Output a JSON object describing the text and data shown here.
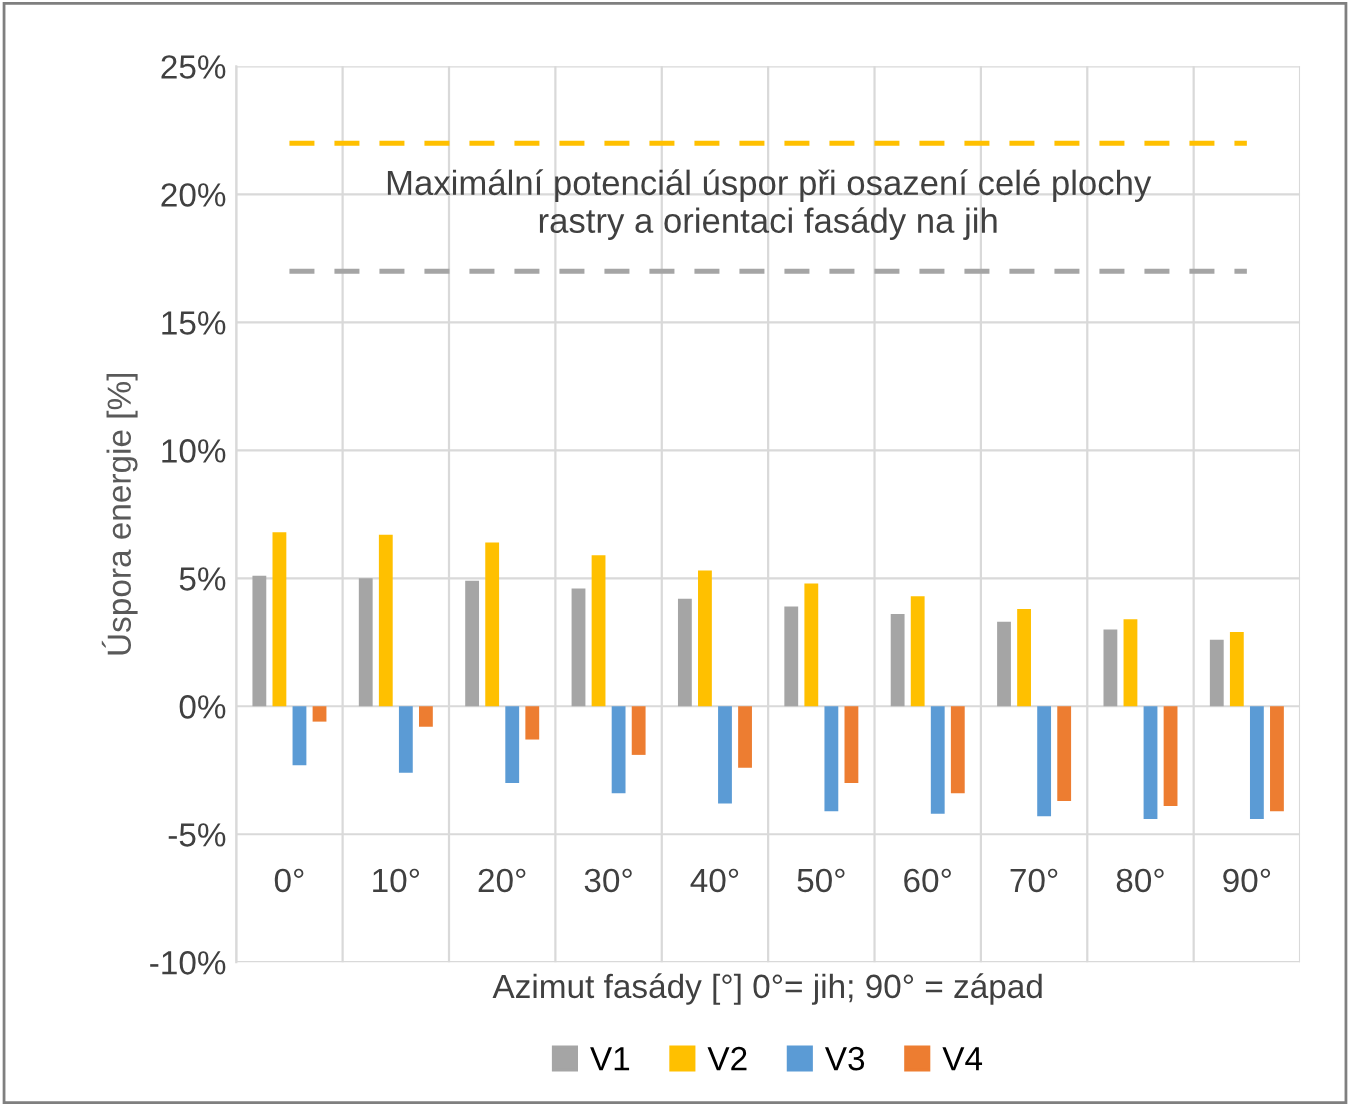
{
  "chart_data": {
    "type": "bar",
    "xlabel": "Azimut fasády [°] 0°= jih; 90° = západ",
    "ylabel": "Úspora energie [%]",
    "categories": [
      "0°",
      "10°",
      "20°",
      "30°",
      "40°",
      "50°",
      "60°",
      "70°",
      "80°",
      "90°"
    ],
    "series": [
      {
        "name": "V1",
        "color": "#a5a5a5",
        "values": [
          5.1,
          5.0,
          4.9,
          4.6,
          4.2,
          3.9,
          3.6,
          3.3,
          3.0,
          2.6
        ]
      },
      {
        "name": "V2",
        "color": "#ffc000",
        "values": [
          6.8,
          6.7,
          6.4,
          5.9,
          5.3,
          4.8,
          4.3,
          3.8,
          3.4,
          2.9
        ]
      },
      {
        "name": "V3",
        "color": "#5b9bd5",
        "values": [
          -2.3,
          -2.6,
          -3.0,
          -3.4,
          -3.8,
          -4.1,
          -4.2,
          -4.3,
          -4.4,
          -4.4
        ]
      },
      {
        "name": "V4",
        "color": "#ed7d31",
        "values": [
          -0.6,
          -0.8,
          -1.3,
          -1.9,
          -2.4,
          -3.0,
          -3.4,
          -3.7,
          -3.9,
          -4.1
        ]
      }
    ],
    "ylim": [
      -10,
      25
    ],
    "yticks": [
      {
        "value": -10,
        "label": "-10%"
      },
      {
        "value": -5,
        "label": "-5%"
      },
      {
        "value": 0,
        "label": "0%"
      },
      {
        "value": 5,
        "label": "5%"
      },
      {
        "value": 10,
        "label": "10%"
      },
      {
        "value": 15,
        "label": "15%"
      },
      {
        "value": 20,
        "label": "20%"
      },
      {
        "value": 25,
        "label": "25%"
      }
    ],
    "ref_lines": [
      {
        "axis": "y",
        "value": 22,
        "color": "#ffc000",
        "line_style": "dashed"
      },
      {
        "axis": "y",
        "value": 17,
        "color": "#a5a5a5",
        "line_style": "dashed"
      }
    ],
    "annotations": [
      "Maximální potenciál úspor při osazení celé plochy\nrastry a orientaci fasády na jih"
    ],
    "grid": true,
    "legend": "bottom"
  }
}
